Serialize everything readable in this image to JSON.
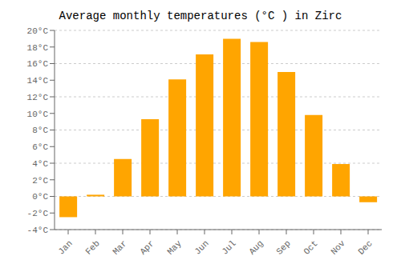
{
  "chart_data": {
    "type": "bar",
    "title": "Average monthly temperatures (°C ) in Zirc",
    "categories": [
      "Jan",
      "Feb",
      "Mar",
      "Apr",
      "May",
      "Jun",
      "Jul",
      "Aug",
      "Sep",
      "Oct",
      "Nov",
      "Dec"
    ],
    "values": [
      -2.5,
      0.2,
      4.5,
      9.3,
      14.1,
      17.1,
      19.0,
      18.6,
      15.0,
      9.8,
      3.9,
      -0.7
    ],
    "color": "#FFA500",
    "ylim": [
      -4,
      20
    ],
    "yticks": [
      {
        "value": -4,
        "label": "-4°C"
      },
      {
        "value": -2,
        "label": "-2°C"
      },
      {
        "value": 0,
        "label": "0°C"
      },
      {
        "value": 2,
        "label": "2°C"
      },
      {
        "value": 4,
        "label": "4°C"
      },
      {
        "value": 6,
        "label": "6°C"
      },
      {
        "value": 8,
        "label": "8°C"
      },
      {
        "value": 10,
        "label": "10°C"
      },
      {
        "value": 12,
        "label": "12°C"
      },
      {
        "value": 14,
        "label": "14°C"
      },
      {
        "value": 16,
        "label": "16°C"
      },
      {
        "value": 18,
        "label": "18°C"
      },
      {
        "value": 20,
        "label": "20°C"
      }
    ],
    "grid": true
  }
}
